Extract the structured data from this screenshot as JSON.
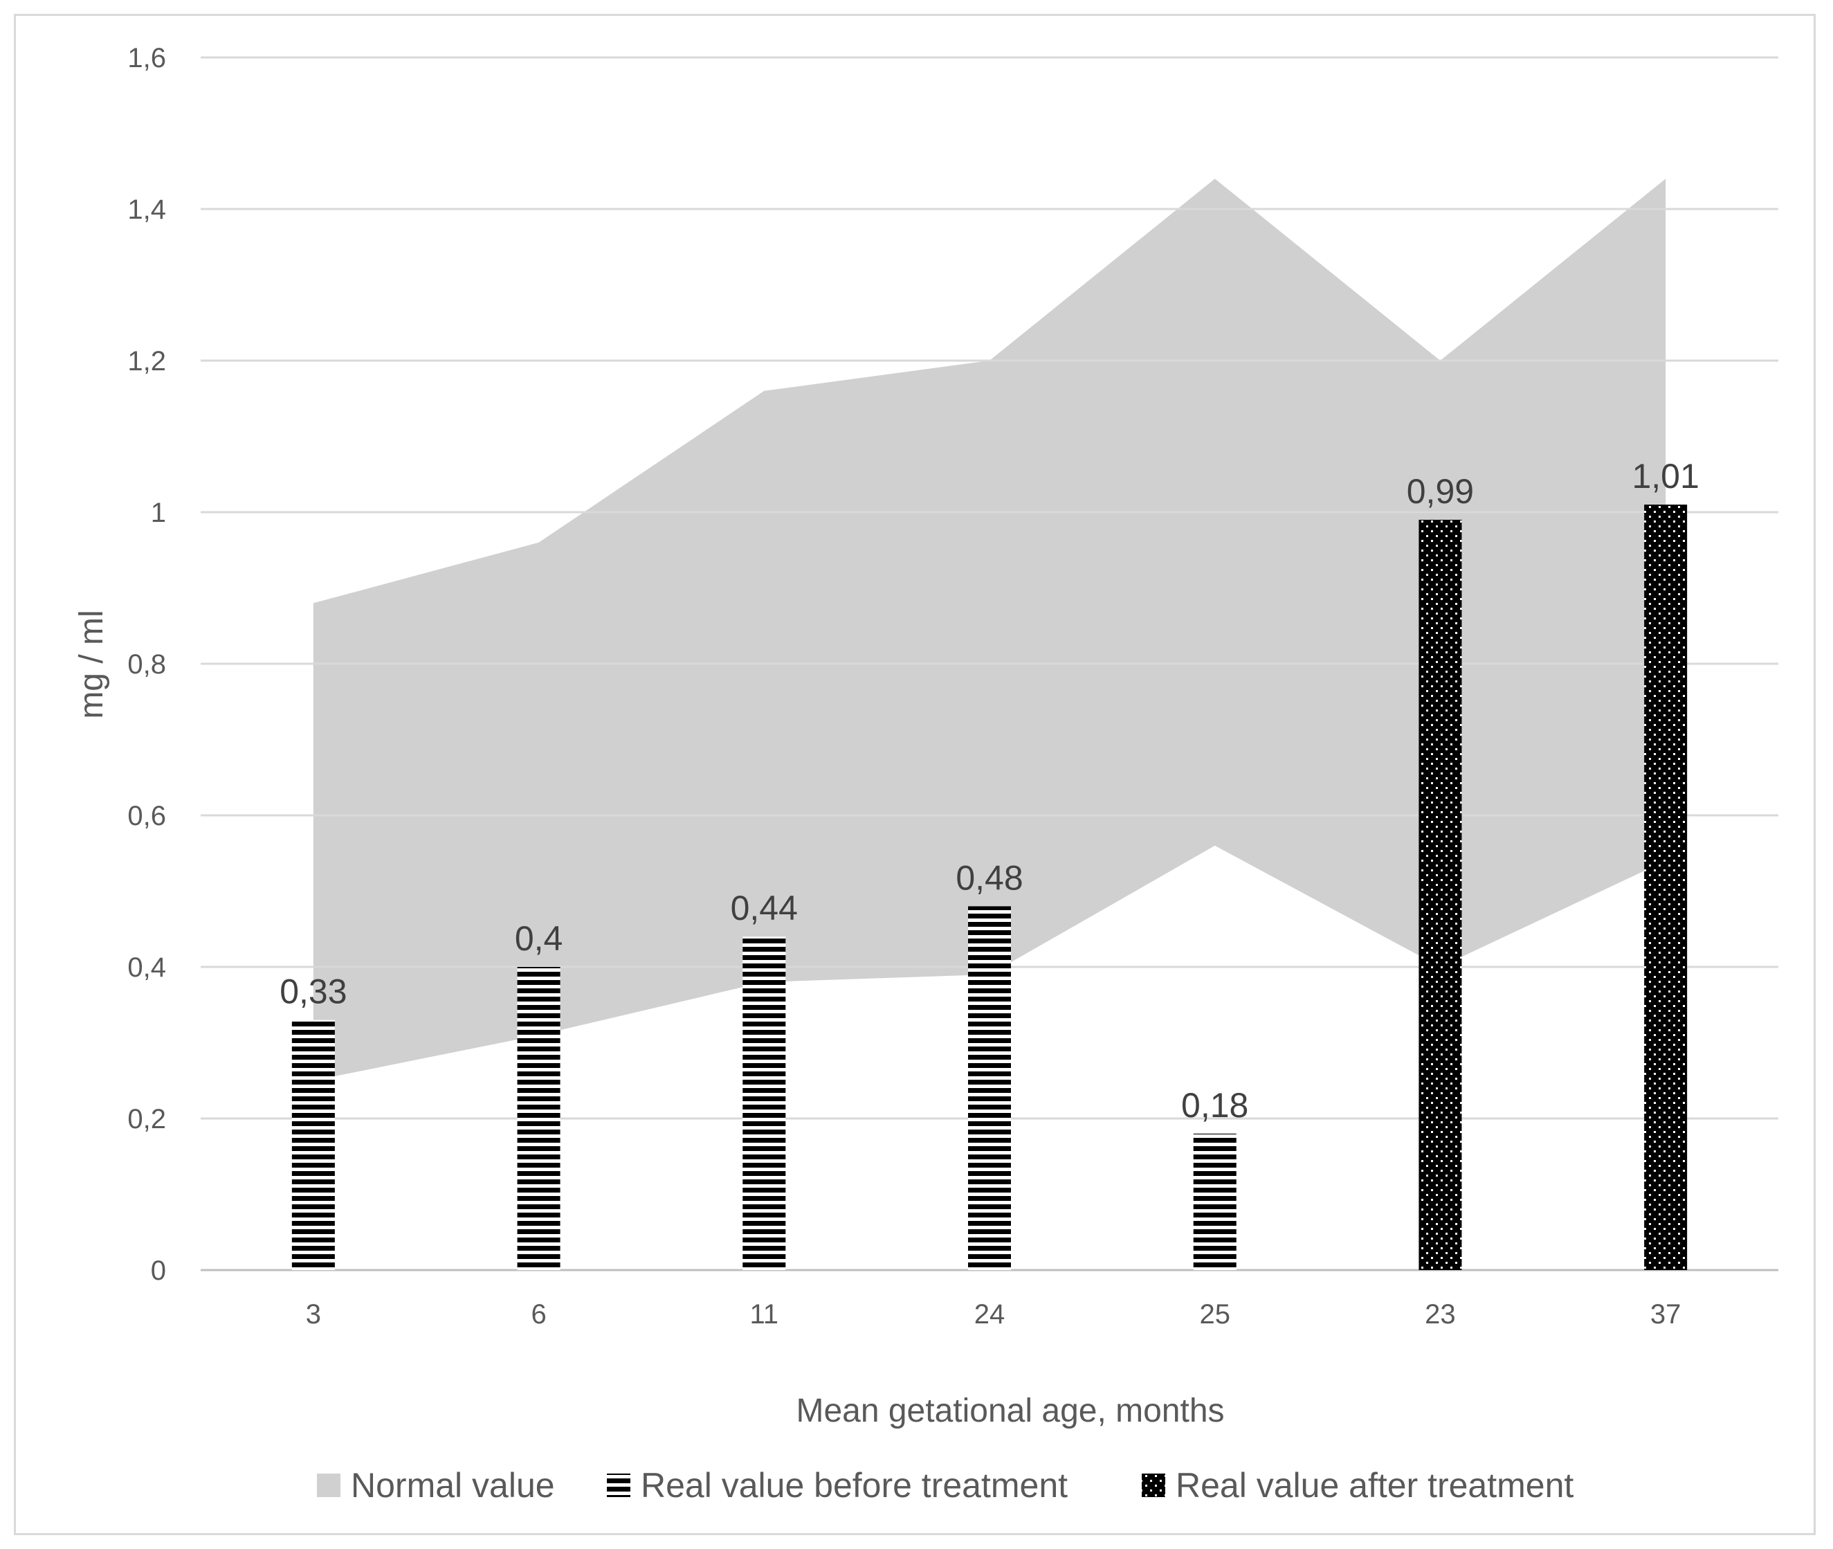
{
  "chart_data": {
    "type": "bar",
    "categories": [
      "3",
      "6",
      "11",
      "24",
      "25",
      "23",
      "37"
    ],
    "xlabel": "Mean getational age, months",
    "ylabel": "mg / ml",
    "ylim": [
      0,
      1.6
    ],
    "yticks": [
      "0",
      "0,2",
      "0,4",
      "0,6",
      "0,8",
      "1",
      "1,2",
      "1,4",
      "1,6"
    ],
    "grid": true,
    "legend_position": "bottom",
    "normal_range": {
      "name": "Normal value",
      "lower": [
        0.25,
        0.31,
        0.38,
        0.39,
        0.56,
        0.4,
        0.54
      ],
      "upper": [
        0.88,
        0.96,
        1.16,
        1.2,
        1.44,
        1.2,
        1.44
      ],
      "color": "#d0d0d0"
    },
    "series": [
      {
        "name": "Real value before treatment",
        "values": [
          0.33,
          0.4,
          0.44,
          0.48,
          0.18,
          null,
          null
        ],
        "labels": [
          "0,33",
          "0,4",
          "0,44",
          "0,48",
          "0,18",
          "",
          ""
        ],
        "pattern": "horizontal-stripes"
      },
      {
        "name": "Real value after treatment",
        "values": [
          null,
          null,
          null,
          null,
          null,
          0.99,
          1.01
        ],
        "labels": [
          "",
          "",
          "",
          "",
          "",
          "0,99",
          "1,01"
        ],
        "pattern": "dotted-black"
      }
    ]
  }
}
